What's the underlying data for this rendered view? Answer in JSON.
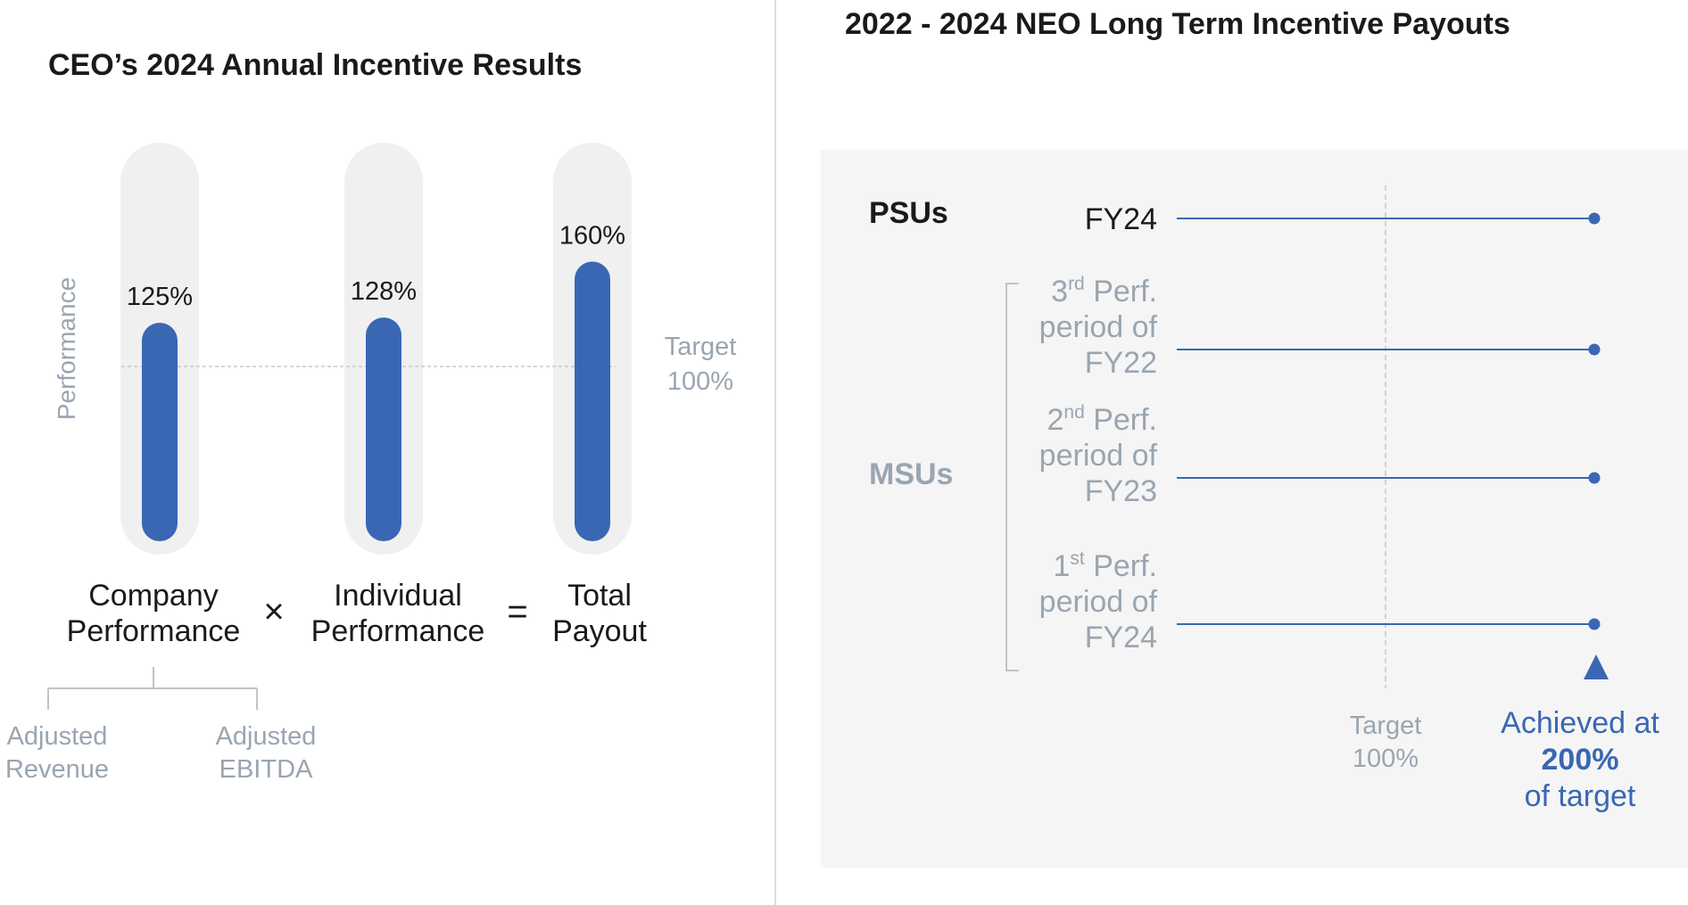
{
  "colors": {
    "bar": "#3a67b3",
    "track": "#f0f0f0",
    "muted": "#9aa5b1",
    "text": "#1a1a1a",
    "accent": "#3a67b3",
    "panel": "#f5f5f5"
  },
  "left_title": "CEO’s 2024 Annual Incentive Results",
  "right_title": "2022 - 2024 NEO Long Term Incentive Payouts",
  "chart_data": [
    {
      "type": "bar",
      "title": "CEO’s 2024 Annual Incentive Results",
      "ylabel": "Performance",
      "ylim": [
        0,
        200
      ],
      "target": {
        "value": 100,
        "label_line1": "Target",
        "label_line2": "100%"
      },
      "categories": [
        {
          "line1": "Company",
          "line2": "Performance"
        },
        {
          "line1": "Individual",
          "line2": "Performance"
        },
        {
          "line1": "Total",
          "line2": "Payout"
        }
      ],
      "values": [
        125,
        128,
        160
      ],
      "value_labels": [
        "125%",
        "128%",
        "160%"
      ],
      "operators": [
        "×",
        "="
      ],
      "sub_components": [
        {
          "line1": "Adjusted",
          "line2": "Revenue"
        },
        {
          "line1": "Adjusted",
          "line2": "EBITDA"
        }
      ]
    },
    {
      "type": "scatter",
      "title": "2022 - 2024 NEO Long Term Incentive Payouts",
      "target": {
        "value": 100,
        "label_line1": "Target",
        "label_line2": "100%"
      },
      "xlim": [
        0,
        200
      ],
      "groups": [
        {
          "label": "PSUs",
          "rows": [
            {
              "lines": [
                "FY24"
              ],
              "value": 200
            }
          ]
        },
        {
          "label": "MSUs",
          "rows": [
            {
              "lines": [
                {
                  "num": "3",
                  "sup": "rd",
                  "rest": " Perf."
                },
                "period of",
                "FY22"
              ],
              "value": 200
            },
            {
              "lines": [
                {
                  "num": "2",
                  "sup": "nd",
                  "rest": " Perf."
                },
                "period of",
                "FY23"
              ],
              "value": 200
            },
            {
              "lines": [
                {
                  "num": "1",
                  "sup": "st",
                  "rest": " Perf."
                },
                "period of",
                "FY24"
              ],
              "value": 200
            }
          ]
        }
      ],
      "achieved": {
        "line1": "Achieved at",
        "line2": "200%",
        "line3": "of target"
      }
    }
  ]
}
